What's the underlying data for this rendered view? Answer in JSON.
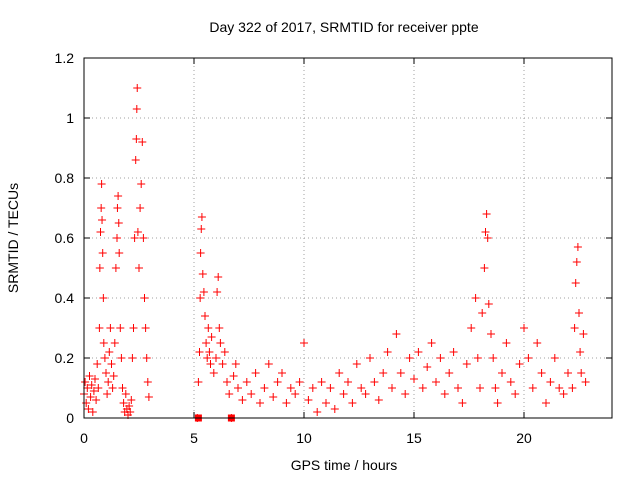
{
  "chart_data": {
    "type": "scatter",
    "title": "Day 322 of 2017, SRMTID for receiver ppte",
    "xlabel": "GPS time / hours",
    "ylabel": "SRMTID / TECUs",
    "xlim": [
      0,
      24
    ],
    "ylim": [
      0,
      1.2
    ],
    "xticks": [
      0,
      5,
      10,
      15,
      20
    ],
    "xtick_labels": [
      "0",
      "5",
      "10",
      "15",
      "20"
    ],
    "yticks": [
      0,
      0.2,
      0.4,
      0.6,
      0.8,
      1.0,
      1.2
    ],
    "ytick_labels": [
      "0",
      "0.2",
      "0.4",
      "0.6",
      "0.8",
      "1",
      "1.2"
    ],
    "grid": true,
    "marker": "+",
    "color": "#ff0000",
    "series": [
      {
        "name": "SRMTID",
        "points": [
          [
            0.0,
            0.08
          ],
          [
            0.05,
            0.12
          ],
          [
            0.1,
            0.05
          ],
          [
            0.15,
            0.1
          ],
          [
            0.2,
            0.03
          ],
          [
            0.25,
            0.14
          ],
          [
            0.3,
            0.07
          ],
          [
            0.35,
            0.11
          ],
          [
            0.4,
            0.02
          ],
          [
            0.45,
            0.09
          ],
          [
            0.5,
            0.13
          ],
          [
            0.55,
            0.06
          ],
          [
            0.6,
            0.18
          ],
          [
            0.65,
            0.1
          ],
          [
            0.7,
            0.3
          ],
          [
            0.72,
            0.5
          ],
          [
            0.75,
            0.62
          ],
          [
            0.78,
            0.7
          ],
          [
            0.8,
            0.78
          ],
          [
            0.82,
            0.66
          ],
          [
            0.85,
            0.55
          ],
          [
            0.88,
            0.4
          ],
          [
            0.9,
            0.25
          ],
          [
            0.95,
            0.2
          ],
          [
            1.0,
            0.15
          ],
          [
            1.05,
            0.08
          ],
          [
            1.1,
            0.12
          ],
          [
            1.15,
            0.22
          ],
          [
            1.2,
            0.3
          ],
          [
            1.25,
            0.18
          ],
          [
            1.3,
            0.1
          ],
          [
            1.35,
            0.14
          ],
          [
            1.4,
            0.25
          ],
          [
            1.45,
            0.5
          ],
          [
            1.5,
            0.6
          ],
          [
            1.52,
            0.7
          ],
          [
            1.55,
            0.74
          ],
          [
            1.58,
            0.65
          ],
          [
            1.6,
            0.55
          ],
          [
            1.65,
            0.3
          ],
          [
            1.7,
            0.2
          ],
          [
            1.75,
            0.1
          ],
          [
            1.8,
            0.05
          ],
          [
            1.85,
            0.02
          ],
          [
            1.9,
            0.08
          ],
          [
            1.95,
            0.03
          ],
          [
            2.0,
            0.01
          ],
          [
            2.05,
            0.04
          ],
          [
            2.1,
            0.02
          ],
          [
            2.15,
            0.06
          ],
          [
            2.2,
            0.2
          ],
          [
            2.25,
            0.3
          ],
          [
            2.3,
            0.6
          ],
          [
            2.35,
            0.86
          ],
          [
            2.38,
            0.93
          ],
          [
            2.4,
            1.03
          ],
          [
            2.42,
            1.1
          ],
          [
            2.45,
            0.62
          ],
          [
            2.5,
            0.5
          ],
          [
            2.55,
            0.7
          ],
          [
            2.6,
            0.78
          ],
          [
            2.65,
            0.92
          ],
          [
            2.7,
            0.6
          ],
          [
            2.75,
            0.4
          ],
          [
            2.8,
            0.3
          ],
          [
            2.85,
            0.2
          ],
          [
            2.9,
            0.12
          ],
          [
            2.95,
            0.07
          ],
          [
            5.15,
            0.0
          ],
          [
            5.2,
            0.12
          ],
          [
            5.25,
            0.22
          ],
          [
            5.28,
            0.4
          ],
          [
            5.3,
            0.55
          ],
          [
            5.33,
            0.63
          ],
          [
            5.36,
            0.67
          ],
          [
            5.4,
            0.48
          ],
          [
            5.45,
            0.42
          ],
          [
            5.5,
            0.34
          ],
          [
            5.55,
            0.25
          ],
          [
            5.6,
            0.2
          ],
          [
            5.65,
            0.3
          ],
          [
            5.7,
            0.22
          ],
          [
            5.75,
            0.18
          ],
          [
            5.8,
            0.27
          ],
          [
            5.9,
            0.15
          ],
          [
            6.0,
            0.2
          ],
          [
            6.05,
            0.42
          ],
          [
            6.1,
            0.47
          ],
          [
            6.15,
            0.3
          ],
          [
            6.2,
            0.25
          ],
          [
            6.3,
            0.18
          ],
          [
            6.4,
            0.22
          ],
          [
            6.5,
            0.12
          ],
          [
            6.6,
            0.08
          ],
          [
            6.7,
            0.0
          ],
          [
            6.8,
            0.14
          ],
          [
            6.9,
            0.18
          ],
          [
            7.0,
            0.1
          ],
          [
            7.2,
            0.06
          ],
          [
            7.4,
            0.12
          ],
          [
            7.6,
            0.08
          ],
          [
            7.8,
            0.15
          ],
          [
            8.0,
            0.05
          ],
          [
            8.2,
            0.1
          ],
          [
            8.4,
            0.18
          ],
          [
            8.6,
            0.07
          ],
          [
            8.8,
            0.12
          ],
          [
            9.0,
            0.15
          ],
          [
            9.2,
            0.05
          ],
          [
            9.4,
            0.1
          ],
          [
            9.6,
            0.08
          ],
          [
            9.8,
            0.12
          ],
          [
            10.0,
            0.25
          ],
          [
            10.2,
            0.06
          ],
          [
            10.4,
            0.1
          ],
          [
            10.6,
            0.02
          ],
          [
            10.8,
            0.12
          ],
          [
            11.0,
            0.05
          ],
          [
            11.2,
            0.1
          ],
          [
            11.4,
            0.03
          ],
          [
            11.6,
            0.15
          ],
          [
            11.8,
            0.08
          ],
          [
            12.0,
            0.12
          ],
          [
            12.2,
            0.05
          ],
          [
            12.4,
            0.18
          ],
          [
            12.6,
            0.1
          ],
          [
            12.8,
            0.08
          ],
          [
            13.0,
            0.2
          ],
          [
            13.2,
            0.12
          ],
          [
            13.4,
            0.06
          ],
          [
            13.6,
            0.15
          ],
          [
            13.8,
            0.22
          ],
          [
            14.0,
            0.1
          ],
          [
            14.2,
            0.28
          ],
          [
            14.4,
            0.15
          ],
          [
            14.6,
            0.08
          ],
          [
            14.8,
            0.2
          ],
          [
            15.0,
            0.13
          ],
          [
            15.2,
            0.22
          ],
          [
            15.4,
            0.1
          ],
          [
            15.6,
            0.17
          ],
          [
            15.8,
            0.25
          ],
          [
            16.0,
            0.12
          ],
          [
            16.2,
            0.2
          ],
          [
            16.4,
            0.08
          ],
          [
            16.6,
            0.15
          ],
          [
            16.8,
            0.22
          ],
          [
            17.0,
            0.1
          ],
          [
            17.2,
            0.05
          ],
          [
            17.4,
            0.18
          ],
          [
            17.6,
            0.3
          ],
          [
            17.8,
            0.4
          ],
          [
            17.9,
            0.2
          ],
          [
            18.0,
            0.1
          ],
          [
            18.1,
            0.35
          ],
          [
            18.2,
            0.5
          ],
          [
            18.25,
            0.62
          ],
          [
            18.3,
            0.68
          ],
          [
            18.35,
            0.6
          ],
          [
            18.4,
            0.38
          ],
          [
            18.5,
            0.28
          ],
          [
            18.6,
            0.2
          ],
          [
            18.7,
            0.1
          ],
          [
            18.8,
            0.05
          ],
          [
            19.0,
            0.15
          ],
          [
            19.2,
            0.25
          ],
          [
            19.4,
            0.12
          ],
          [
            19.6,
            0.08
          ],
          [
            19.8,
            0.18
          ],
          [
            20.0,
            0.3
          ],
          [
            20.2,
            0.2
          ],
          [
            20.4,
            0.1
          ],
          [
            20.6,
            0.25
          ],
          [
            20.8,
            0.15
          ],
          [
            21.0,
            0.05
          ],
          [
            21.2,
            0.12
          ],
          [
            21.4,
            0.2
          ],
          [
            21.6,
            0.1
          ],
          [
            21.8,
            0.08
          ],
          [
            22.0,
            0.15
          ],
          [
            22.2,
            0.1
          ],
          [
            22.3,
            0.3
          ],
          [
            22.35,
            0.45
          ],
          [
            22.4,
            0.52
          ],
          [
            22.45,
            0.57
          ],
          [
            22.5,
            0.35
          ],
          [
            22.55,
            0.22
          ],
          [
            22.6,
            0.15
          ],
          [
            22.7,
            0.28
          ],
          [
            22.8,
            0.12
          ]
        ]
      }
    ],
    "square_markers": [
      [
        5.2,
        0.0
      ],
      [
        6.7,
        0.0
      ]
    ]
  }
}
